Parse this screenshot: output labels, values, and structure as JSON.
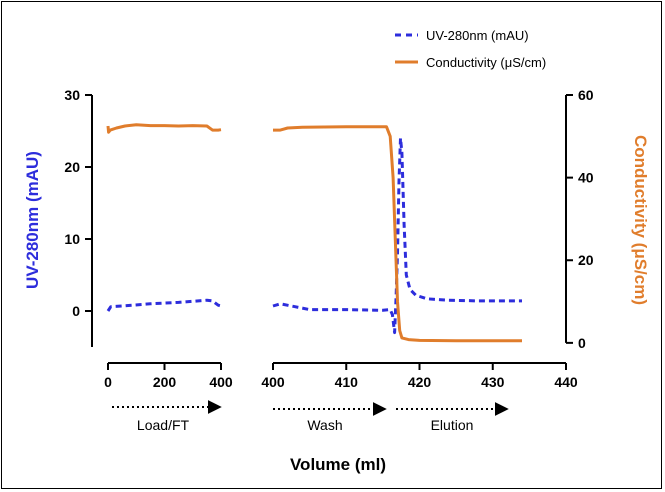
{
  "chart_data": {
    "type": "line",
    "xlabel": "Volume (ml)",
    "y_left_label": "UV-280nm (mAU)",
    "y_right_label": "Conductivity (μS/cm)",
    "y_left_range": [
      -5,
      30
    ],
    "y_left_ticks": [
      "0",
      "10",
      "20",
      "30"
    ],
    "y_right_range": [
      -1,
      60
    ],
    "y_right_ticks": [
      "0",
      "20",
      "40",
      "60"
    ],
    "x_segments": [
      {
        "range": [
          0,
          400
        ],
        "ticks": [
          "0",
          "200",
          "400"
        ]
      },
      {
        "range": [
          400,
          440
        ],
        "ticks": [
          "400",
          "410",
          "420",
          "430",
          "440"
        ]
      }
    ],
    "phases": [
      "Load/FT",
      "Wash",
      "Elution"
    ],
    "colors": {
      "uv": "#2d2ddc",
      "conductivity": "#e07d2c"
    },
    "series": [
      {
        "name": "UV-280nm (mAU)",
        "axis": "left",
        "style": "dashed",
        "segments": [
          [
            [
              0,
              0.0
            ],
            [
              10,
              0.6
            ],
            [
              50,
              0.7
            ],
            [
              150,
              1.0
            ],
            [
              250,
              1.2
            ],
            [
              350,
              1.5
            ],
            [
              370,
              1.4
            ],
            [
              390,
              0.8
            ],
            [
              400,
              0.7
            ]
          ],
          [
            [
              400,
              0.7
            ],
            [
              401,
              1.0
            ],
            [
              403,
              0.6
            ],
            [
              405,
              0.2
            ],
            [
              410,
              0.2
            ],
            [
              415,
              0.1
            ],
            [
              416,
              0.2
            ],
            [
              416.3,
              -0.5
            ],
            [
              416.6,
              -3.0
            ],
            [
              416.8,
              2.0
            ],
            [
              417.0,
              8.0
            ],
            [
              417.2,
              18.0
            ],
            [
              417.4,
              24.0
            ],
            [
              417.6,
              22.0
            ],
            [
              417.9,
              12.0
            ],
            [
              418.2,
              5.0
            ],
            [
              418.7,
              3.0
            ],
            [
              419.5,
              2.2
            ],
            [
              421,
              1.7
            ],
            [
              424,
              1.5
            ],
            [
              428,
              1.4
            ],
            [
              434,
              1.4
            ]
          ]
        ]
      },
      {
        "name": "Conductivity (μS/cm)",
        "axis": "right",
        "style": "solid",
        "segments": [
          [
            [
              0,
              52.5
            ],
            [
              2,
              51.0
            ],
            [
              8,
              51.5
            ],
            [
              30,
              52.0
            ],
            [
              60,
              52.5
            ],
            [
              100,
              52.8
            ],
            [
              150,
              52.6
            ],
            [
              200,
              52.6
            ],
            [
              250,
              52.5
            ],
            [
              300,
              52.6
            ],
            [
              350,
              52.5
            ],
            [
              370,
              51.5
            ],
            [
              390,
              51.5
            ],
            [
              400,
              51.6
            ]
          ],
          [
            [
              400,
              51.5
            ],
            [
              401,
              51.5
            ],
            [
              402,
              52.0
            ],
            [
              404,
              52.2
            ],
            [
              410,
              52.3
            ],
            [
              415.5,
              52.3
            ],
            [
              416.0,
              50.0
            ],
            [
              416.4,
              40.0
            ],
            [
              416.7,
              25.0
            ],
            [
              417.0,
              10.0
            ],
            [
              417.3,
              3.0
            ],
            [
              417.6,
              1.2
            ],
            [
              418.5,
              0.8
            ],
            [
              420,
              0.6
            ],
            [
              425,
              0.5
            ],
            [
              434,
              0.5
            ]
          ]
        ]
      }
    ]
  }
}
